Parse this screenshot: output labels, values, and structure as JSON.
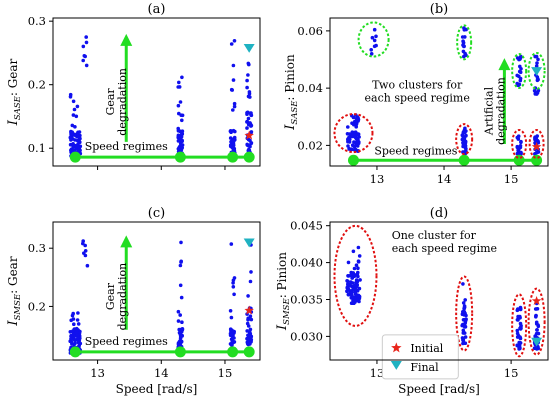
{
  "colors": {
    "points": "#1010ee",
    "initial": "#e8251b",
    "final": "#1fb2c2",
    "annotation_green": "#22dd22",
    "ellipse_red": "#e01010",
    "ellipse_green": "#22dd22"
  },
  "chart_data": [
    {
      "id": "a",
      "type": "scatter",
      "title": "(a)",
      "ylabel_main": "I",
      "ylabel_sub": "SASE",
      "ylabel_rest": ": Gear",
      "xlabel": "",
      "xlim": [
        12.3,
        15.55
      ],
      "ylim": [
        0.072,
        0.305
      ],
      "xticks": [
        13,
        14,
        15
      ],
      "xtick_labels": [
        "",
        "",
        ""
      ],
      "yticks": [
        0.1,
        0.2,
        0.3
      ],
      "ytick_labels": [
        "0.1",
        "0.2",
        "0.3"
      ],
      "regimes": [
        12.65,
        14.3,
        15.12,
        15.38
      ],
      "clusters": [
        {
          "x": 12.65,
          "ymin": 0.085,
          "ymax": 0.185,
          "n": 80,
          "spread": 0.08,
          "seed": 11,
          "center": 0.105
        },
        {
          "x": 12.8,
          "ymin": 0.22,
          "ymax": 0.275,
          "n": 7,
          "spread": 0.04,
          "seed": 12,
          "center": 0.25
        },
        {
          "x": 14.3,
          "ymin": 0.09,
          "ymax": 0.29,
          "n": 55,
          "spread": 0.035,
          "seed": 13,
          "center": 0.11
        },
        {
          "x": 15.12,
          "ymin": 0.085,
          "ymax": 0.285,
          "n": 45,
          "spread": 0.035,
          "seed": 14,
          "center": 0.105
        },
        {
          "x": 15.38,
          "ymin": 0.085,
          "ymax": 0.27,
          "n": 50,
          "spread": 0.035,
          "seed": 15,
          "center": 0.12
        }
      ],
      "initial": {
        "x": 15.38,
        "y": 0.12
      },
      "final": {
        "x": 15.38,
        "y": 0.258
      },
      "annotations": {
        "speed_label": "Speed regimes",
        "arrow_label_1": "Gear",
        "arrow_label_2": "degradation"
      }
    },
    {
      "id": "b",
      "type": "scatter",
      "title": "(b)",
      "ylabel_main": "I",
      "ylabel_sub": "SASE",
      "ylabel_rest": ": Pinion",
      "xlabel": "",
      "xlim": [
        12.3,
        15.55
      ],
      "ylim": [
        0.0128,
        0.0645
      ],
      "xticks": [
        13,
        14,
        15
      ],
      "xtick_labels": [
        "13",
        "14",
        "15"
      ],
      "yticks": [
        0.02,
        0.04,
        0.06
      ],
      "ytick_labels": [
        "0.02",
        "0.04",
        "0.06"
      ],
      "regimes": [
        12.65,
        14.3,
        15.12,
        15.38
      ],
      "clusters": [
        {
          "x": 12.65,
          "ymin": 0.018,
          "ymax": 0.031,
          "n": 70,
          "spread": 0.09,
          "seed": 21,
          "center": 0.024
        },
        {
          "x": 12.95,
          "ymin": 0.052,
          "ymax": 0.062,
          "n": 8,
          "spread": 0.06,
          "seed": 22,
          "center": 0.057
        },
        {
          "x": 14.3,
          "ymin": 0.017,
          "ymax": 0.027,
          "n": 40,
          "spread": 0.03,
          "seed": 23,
          "center": 0.021
        },
        {
          "x": 14.3,
          "ymin": 0.051,
          "ymax": 0.061,
          "n": 14,
          "spread": 0.03,
          "seed": 24,
          "center": 0.056
        },
        {
          "x": 15.12,
          "ymin": 0.017,
          "ymax": 0.024,
          "n": 25,
          "spread": 0.03,
          "seed": 25,
          "center": 0.02
        },
        {
          "x": 15.12,
          "ymin": 0.041,
          "ymax": 0.051,
          "n": 18,
          "spread": 0.03,
          "seed": 26,
          "center": 0.046
        },
        {
          "x": 15.38,
          "ymin": 0.017,
          "ymax": 0.024,
          "n": 25,
          "spread": 0.03,
          "seed": 27,
          "center": 0.02
        },
        {
          "x": 15.38,
          "ymin": 0.038,
          "ymax": 0.051,
          "n": 20,
          "spread": 0.03,
          "seed": 28,
          "center": 0.045
        }
      ],
      "initial": {
        "x": 15.38,
        "y": 0.0195
      },
      "final": {
        "x": 15.38,
        "y": 0.046
      },
      "annotations": {
        "speed_label": "Speed regimes",
        "cluster_text_1": "Two clusters for",
        "cluster_text_2": "each speed regime",
        "arrow_label_1": "Artificial",
        "arrow_label_2": "degradation"
      }
    },
    {
      "id": "c",
      "type": "scatter",
      "title": "(c)",
      "ylabel_main": "I",
      "ylabel_sub": "SMSE",
      "ylabel_rest": ": Gear",
      "xlabel": "Speed [rad/s]",
      "xlim": [
        12.3,
        15.55
      ],
      "ylim": [
        0.108,
        0.345
      ],
      "xticks": [
        13,
        14,
        15
      ],
      "xtick_labels": [
        "13",
        "14",
        "15"
      ],
      "yticks": [
        0.2,
        0.3
      ],
      "ytick_labels": [
        "0.2",
        "0.3"
      ],
      "regimes": [
        12.65,
        14.3,
        15.12,
        15.38
      ],
      "clusters": [
        {
          "x": 12.65,
          "ymin": 0.12,
          "ymax": 0.205,
          "n": 80,
          "spread": 0.08,
          "seed": 31,
          "center": 0.14
        },
        {
          "x": 12.8,
          "ymin": 0.27,
          "ymax": 0.315,
          "n": 7,
          "spread": 0.04,
          "seed": 32,
          "center": 0.3
        },
        {
          "x": 14.3,
          "ymin": 0.12,
          "ymax": 0.335,
          "n": 55,
          "spread": 0.035,
          "seed": 33,
          "center": 0.14
        },
        {
          "x": 15.12,
          "ymin": 0.12,
          "ymax": 0.33,
          "n": 45,
          "spread": 0.035,
          "seed": 34,
          "center": 0.14
        },
        {
          "x": 15.38,
          "ymin": 0.12,
          "ymax": 0.31,
          "n": 50,
          "spread": 0.035,
          "seed": 35,
          "center": 0.16
        }
      ],
      "initial": {
        "x": 15.38,
        "y": 0.193
      },
      "final": {
        "x": 15.38,
        "y": 0.31
      },
      "annotations": {
        "speed_label": "Speed regimes",
        "arrow_label_1": "Gear",
        "arrow_label_2": "degradation"
      }
    },
    {
      "id": "d",
      "type": "scatter",
      "title": "(d)",
      "ylabel_main": "I",
      "ylabel_sub": "SMSE",
      "ylabel_rest": ": Pinion",
      "xlabel": "Speed [rad/s]",
      "xlim": [
        12.3,
        15.55
      ],
      "ylim": [
        0.0268,
        0.0455
      ],
      "xticks": [
        13,
        14,
        15
      ],
      "xtick_labels": [
        "13",
        "14",
        "15"
      ],
      "yticks": [
        0.03,
        0.035,
        0.04,
        0.045
      ],
      "ytick_labels": [
        "0.030",
        "0.035",
        "0.040",
        "0.045"
      ],
      "regimes": [
        12.65,
        14.3,
        15.12,
        15.38
      ],
      "clusters": [
        {
          "x": 12.65,
          "ymin": 0.0345,
          "ymax": 0.0425,
          "n": 90,
          "spread": 0.11,
          "seed": 41,
          "center": 0.0365
        },
        {
          "x": 14.3,
          "ymin": 0.029,
          "ymax": 0.0372,
          "n": 40,
          "spread": 0.03,
          "seed": 42,
          "center": 0.0315
        },
        {
          "x": 15.12,
          "ymin": 0.0283,
          "ymax": 0.0345,
          "n": 35,
          "spread": 0.03,
          "seed": 43,
          "center": 0.031
        },
        {
          "x": 15.38,
          "ymin": 0.0283,
          "ymax": 0.0355,
          "n": 35,
          "spread": 0.03,
          "seed": 44,
          "center": 0.031
        }
      ],
      "initial": {
        "x": 15.38,
        "y": 0.0348
      },
      "final": {
        "x": 15.38,
        "y": 0.0293
      },
      "annotations": {
        "cluster_text_1": "One cluster for",
        "cluster_text_2": "each speed regime"
      },
      "legend": [
        {
          "label": "Initial",
          "marker": "star"
        },
        {
          "label": "Final",
          "marker": "triangle-down"
        }
      ]
    }
  ]
}
